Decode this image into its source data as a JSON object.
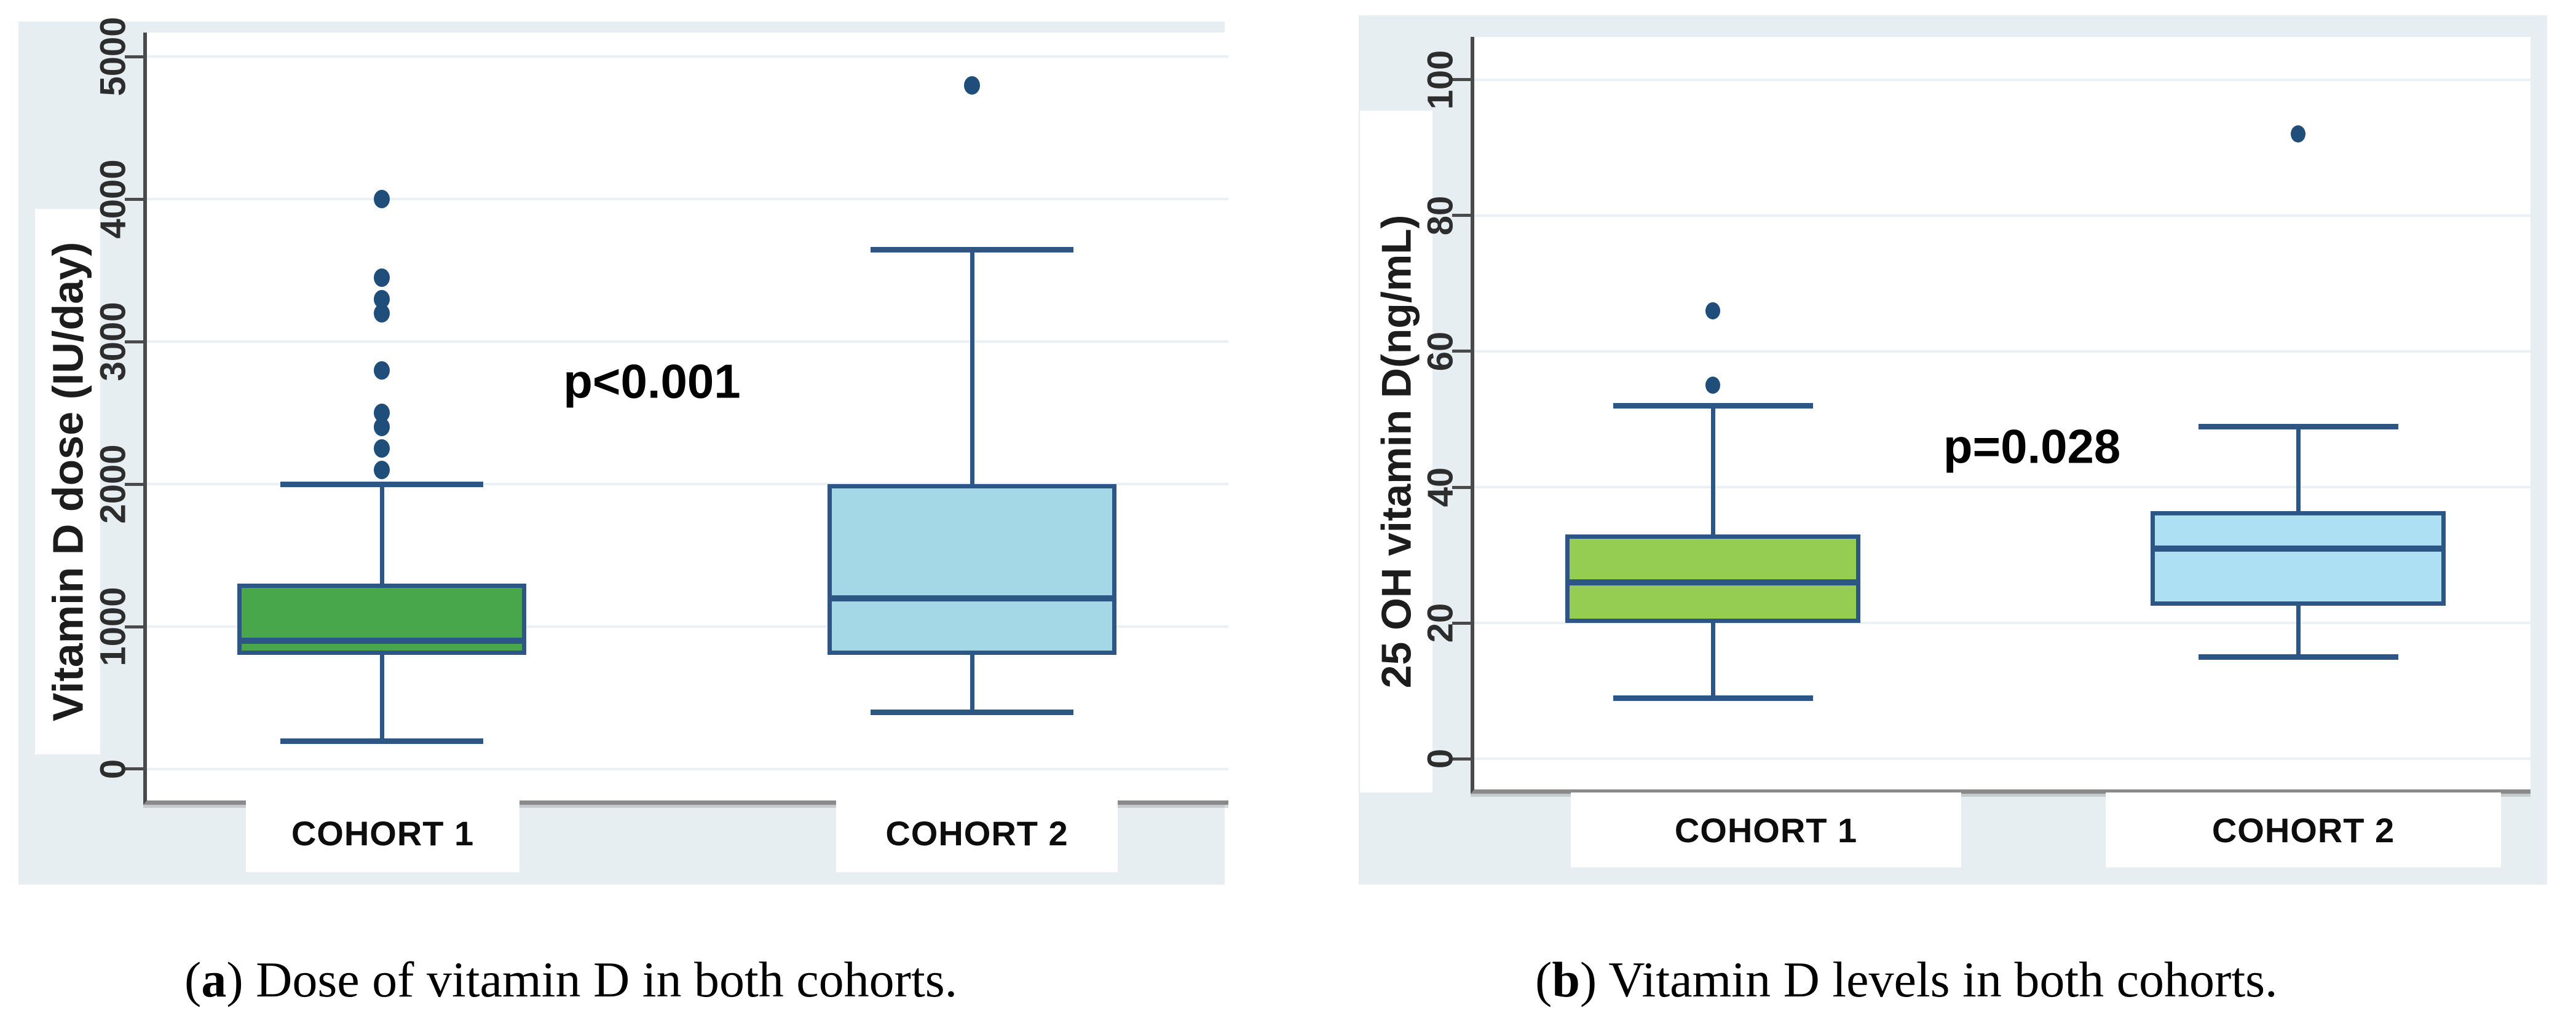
{
  "style": {
    "panel_bg": "#e7eef1",
    "plot_bg": "#ffffff",
    "grid_color": "#e9f1f4",
    "axis_left_color": "#4a4a4a",
    "axis_bottom_color": "#8a8a8a",
    "box_stroke": "#2b5685",
    "green_fill_a": "#48a74b",
    "green_fill_b": "#94cd52",
    "blue_fill_a": "#a5d8e6",
    "blue_fill_b": "#ace0f2",
    "marker_color": "#1f4e7a"
  },
  "captions": [
    {
      "open": "(",
      "letter": "a",
      "close": ") ",
      "text": "Dose of vitamin D in both cohorts."
    },
    {
      "open": "(",
      "letter": "b",
      "close": ") ",
      "text": "Vitamin D levels in both cohorts."
    }
  ],
  "chart_data": [
    {
      "type": "box",
      "title": "",
      "xlabel": "",
      "ylabel": "Vitamin D dose (IU/day)",
      "categories": [
        "COHORT 1",
        "COHORT 2"
      ],
      "yticks": [
        0,
        1000,
        2000,
        3000,
        4000,
        5000
      ],
      "ylim": [
        -220,
        5170
      ],
      "grid": true,
      "annotation": {
        "text": "p<0.001",
        "x_frac": 0.467,
        "y_value": 2720
      },
      "marker_color": "#1f4e7a",
      "series": [
        {
          "name": "COHORT 1",
          "fill": "#48a74b",
          "stroke": "#2b5685",
          "whisker_low": 200,
          "q1": 800,
          "median": 900,
          "q3": 1300,
          "whisker_high": 2000,
          "outliers": [
            2100,
            2250,
            2400,
            2500,
            2800,
            3200,
            3300,
            3450,
            4000
          ]
        },
        {
          "name": "COHORT 2",
          "fill": "#a5d8e6",
          "stroke": "#2b5685",
          "whisker_low": 400,
          "q1": 800,
          "median": 1200,
          "q3": 2000,
          "whisker_high": 3650,
          "outliers": [
            4800
          ]
        }
      ]
    },
    {
      "type": "box",
      "title": "",
      "xlabel": "",
      "ylabel": "25 OH vitamin D(ng/mL)",
      "categories": [
        "COHORT 1",
        "COHORT 2"
      ],
      "yticks": [
        0,
        20,
        40,
        60,
        80,
        100
      ],
      "ylim": [
        -4.5,
        106.3
      ],
      "grid": true,
      "annotation": {
        "text": "p=0.028",
        "x_frac": 0.528,
        "y_value": 46
      },
      "marker_color": "#1f4e7a",
      "series": [
        {
          "name": "COHORT 1",
          "fill": "#94cd52",
          "stroke": "#2b5685",
          "whisker_low": 9,
          "q1": 20,
          "median": 26,
          "q3": 33,
          "whisker_high": 52,
          "outliers": [
            55,
            66
          ]
        },
        {
          "name": "COHORT 2",
          "fill": "#ace0f2",
          "stroke": "#2b5685",
          "whisker_low": 15,
          "q1": 22.5,
          "median": 31,
          "q3": 36.5,
          "whisker_high": 49,
          "outliers": [
            92
          ]
        }
      ]
    }
  ]
}
